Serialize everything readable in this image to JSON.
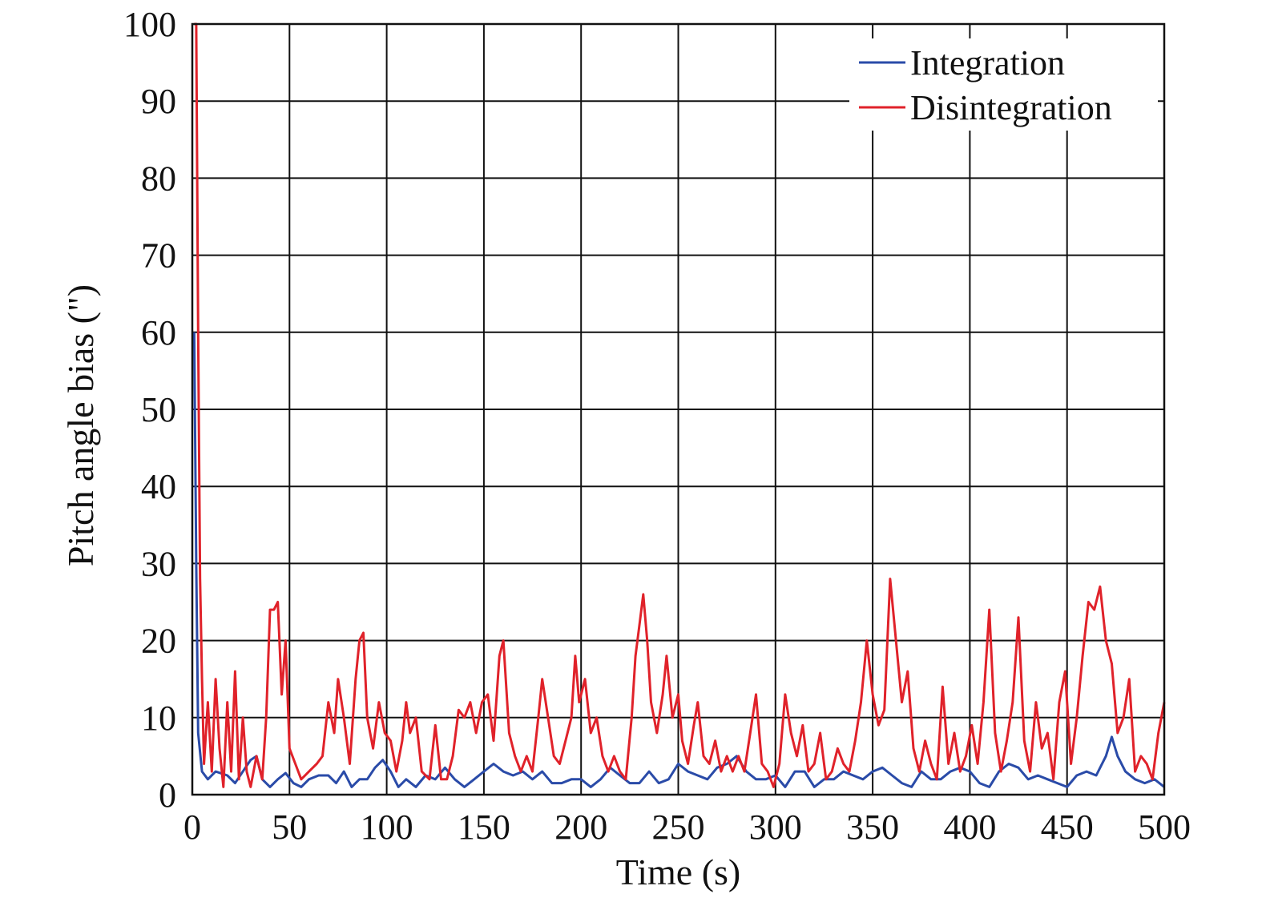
{
  "chart_data": {
    "type": "line",
    "xlabel": "Time (s)",
    "ylabel": "Pitch angle bias (\")",
    "xlim": [
      0,
      500
    ],
    "ylim": [
      0,
      100
    ],
    "xticks": [
      0,
      50,
      100,
      150,
      200,
      250,
      300,
      350,
      400,
      450,
      500
    ],
    "yticks": [
      0,
      10,
      20,
      30,
      40,
      50,
      60,
      70,
      80,
      90,
      100
    ],
    "grid": true,
    "legend": "top-right",
    "series": [
      {
        "name": "Integration",
        "color": "#2a4ba8",
        "points": [
          [
            1,
            60
          ],
          [
            2,
            30
          ],
          [
            3,
            8
          ],
          [
            5,
            3
          ],
          [
            8,
            2
          ],
          [
            12,
            3
          ],
          [
            18,
            2.5
          ],
          [
            22,
            1.5
          ],
          [
            26,
            3
          ],
          [
            30,
            4.5
          ],
          [
            33,
            5
          ],
          [
            36,
            2
          ],
          [
            40,
            1
          ],
          [
            44,
            2
          ],
          [
            48,
            2.8
          ],
          [
            52,
            1.5
          ],
          [
            56,
            1
          ],
          [
            60,
            2
          ],
          [
            65,
            2.5
          ],
          [
            70,
            2.5
          ],
          [
            74,
            1.5
          ],
          [
            78,
            3
          ],
          [
            82,
            1
          ],
          [
            86,
            2
          ],
          [
            90,
            2
          ],
          [
            94,
            3.5
          ],
          [
            98,
            4.5
          ],
          [
            102,
            3
          ],
          [
            106,
            1
          ],
          [
            110,
            2
          ],
          [
            115,
            1
          ],
          [
            120,
            2.5
          ],
          [
            125,
            2
          ],
          [
            130,
            3.5
          ],
          [
            135,
            2
          ],
          [
            140,
            1
          ],
          [
            145,
            2
          ],
          [
            150,
            3
          ],
          [
            155,
            4
          ],
          [
            160,
            3
          ],
          [
            165,
            2.5
          ],
          [
            170,
            3
          ],
          [
            175,
            2
          ],
          [
            180,
            3
          ],
          [
            185,
            1.5
          ],
          [
            190,
            1.5
          ],
          [
            195,
            2
          ],
          [
            200,
            2
          ],
          [
            205,
            1
          ],
          [
            210,
            2
          ],
          [
            215,
            3.5
          ],
          [
            220,
            2.5
          ],
          [
            225,
            1.5
          ],
          [
            230,
            1.5
          ],
          [
            235,
            3
          ],
          [
            240,
            1.5
          ],
          [
            245,
            2
          ],
          [
            250,
            4
          ],
          [
            255,
            3
          ],
          [
            260,
            2.5
          ],
          [
            265,
            2
          ],
          [
            270,
            3.5
          ],
          [
            275,
            4
          ],
          [
            280,
            5
          ],
          [
            285,
            3
          ],
          [
            290,
            2
          ],
          [
            295,
            2
          ],
          [
            300,
            2.5
          ],
          [
            305,
            1
          ],
          [
            310,
            3
          ],
          [
            315,
            3
          ],
          [
            320,
            1
          ],
          [
            325,
            2
          ],
          [
            330,
            2
          ],
          [
            335,
            3
          ],
          [
            340,
            2.5
          ],
          [
            345,
            2
          ],
          [
            350,
            3
          ],
          [
            355,
            3.5
          ],
          [
            360,
            2.5
          ],
          [
            365,
            1.5
          ],
          [
            370,
            1
          ],
          [
            375,
            3
          ],
          [
            380,
            2
          ],
          [
            385,
            2
          ],
          [
            390,
            3
          ],
          [
            395,
            3.5
          ],
          [
            400,
            3
          ],
          [
            405,
            1.5
          ],
          [
            410,
            1
          ],
          [
            415,
            3
          ],
          [
            420,
            4
          ],
          [
            425,
            3.5
          ],
          [
            430,
            2
          ],
          [
            435,
            2.5
          ],
          [
            440,
            2
          ],
          [
            445,
            1.5
          ],
          [
            450,
            1
          ],
          [
            455,
            2.5
          ],
          [
            460,
            3
          ],
          [
            465,
            2.5
          ],
          [
            470,
            5
          ],
          [
            473,
            7.5
          ],
          [
            476,
            5
          ],
          [
            480,
            3
          ],
          [
            485,
            2
          ],
          [
            490,
            1.5
          ],
          [
            495,
            2
          ],
          [
            500,
            1
          ]
        ]
      },
      {
        "name": "Disintegration",
        "color": "#e0222a",
        "points": [
          [
            1,
            100
          ],
          [
            2,
            100
          ],
          [
            3,
            60
          ],
          [
            4,
            28
          ],
          [
            5,
            15
          ],
          [
            6,
            4
          ],
          [
            8,
            12
          ],
          [
            10,
            3
          ],
          [
            12,
            15
          ],
          [
            14,
            6
          ],
          [
            16,
            1
          ],
          [
            18,
            12
          ],
          [
            20,
            3
          ],
          [
            22,
            16
          ],
          [
            24,
            2
          ],
          [
            26,
            10
          ],
          [
            28,
            3
          ],
          [
            30,
            1
          ],
          [
            33,
            5
          ],
          [
            36,
            2
          ],
          [
            38,
            10
          ],
          [
            40,
            24
          ],
          [
            42,
            24
          ],
          [
            44,
            25
          ],
          [
            46,
            13
          ],
          [
            48,
            20
          ],
          [
            50,
            6
          ],
          [
            53,
            4
          ],
          [
            56,
            2
          ],
          [
            60,
            3
          ],
          [
            64,
            4
          ],
          [
            67,
            5
          ],
          [
            70,
            12
          ],
          [
            73,
            8
          ],
          [
            75,
            15
          ],
          [
            78,
            10
          ],
          [
            81,
            4
          ],
          [
            84,
            15
          ],
          [
            86,
            20
          ],
          [
            88,
            21
          ],
          [
            90,
            10
          ],
          [
            93,
            6
          ],
          [
            96,
            12
          ],
          [
            99,
            8
          ],
          [
            102,
            7
          ],
          [
            105,
            3
          ],
          [
            108,
            7
          ],
          [
            110,
            12
          ],
          [
            112,
            8
          ],
          [
            115,
            10
          ],
          [
            118,
            3
          ],
          [
            122,
            2
          ],
          [
            125,
            9
          ],
          [
            128,
            2
          ],
          [
            131,
            2
          ],
          [
            134,
            5
          ],
          [
            137,
            11
          ],
          [
            140,
            10
          ],
          [
            143,
            12
          ],
          [
            146,
            8
          ],
          [
            149,
            12
          ],
          [
            152,
            13
          ],
          [
            155,
            7
          ],
          [
            158,
            18
          ],
          [
            160,
            20
          ],
          [
            163,
            8
          ],
          [
            166,
            5
          ],
          [
            169,
            3
          ],
          [
            172,
            5
          ],
          [
            175,
            3
          ],
          [
            178,
            10
          ],
          [
            180,
            15
          ],
          [
            183,
            10
          ],
          [
            186,
            5
          ],
          [
            189,
            4
          ],
          [
            192,
            7
          ],
          [
            195,
            10
          ],
          [
            197,
            18
          ],
          [
            199,
            12
          ],
          [
            202,
            15
          ],
          [
            205,
            8
          ],
          [
            208,
            10
          ],
          [
            211,
            5
          ],
          [
            214,
            3
          ],
          [
            217,
            5
          ],
          [
            220,
            3
          ],
          [
            223,
            2
          ],
          [
            226,
            10
          ],
          [
            228,
            18
          ],
          [
            230,
            22
          ],
          [
            232,
            26
          ],
          [
            234,
            20
          ],
          [
            236,
            12
          ],
          [
            239,
            8
          ],
          [
            242,
            13
          ],
          [
            244,
            18
          ],
          [
            247,
            10
          ],
          [
            250,
            13
          ],
          [
            252,
            7
          ],
          [
            255,
            4
          ],
          [
            258,
            9
          ],
          [
            260,
            12
          ],
          [
            263,
            5
          ],
          [
            266,
            4
          ],
          [
            269,
            7
          ],
          [
            272,
            3
          ],
          [
            275,
            5
          ],
          [
            278,
            3
          ],
          [
            281,
            5
          ],
          [
            284,
            3
          ],
          [
            287,
            8
          ],
          [
            290,
            13
          ],
          [
            293,
            4
          ],
          [
            296,
            3
          ],
          [
            299,
            1
          ],
          [
            302,
            4
          ],
          [
            305,
            13
          ],
          [
            308,
            8
          ],
          [
            311,
            5
          ],
          [
            314,
            9
          ],
          [
            317,
            3
          ],
          [
            320,
            4
          ],
          [
            323,
            8
          ],
          [
            326,
            2
          ],
          [
            329,
            3
          ],
          [
            332,
            6
          ],
          [
            335,
            4
          ],
          [
            338,
            3
          ],
          [
            341,
            7
          ],
          [
            344,
            12
          ],
          [
            347,
            20
          ],
          [
            350,
            13
          ],
          [
            353,
            9
          ],
          [
            356,
            11
          ],
          [
            359,
            28
          ],
          [
            362,
            20
          ],
          [
            365,
            12
          ],
          [
            368,
            16
          ],
          [
            371,
            6
          ],
          [
            374,
            3
          ],
          [
            377,
            7
          ],
          [
            380,
            4
          ],
          [
            383,
            2
          ],
          [
            386,
            14
          ],
          [
            389,
            4
          ],
          [
            392,
            8
          ],
          [
            395,
            3
          ],
          [
            398,
            5
          ],
          [
            401,
            9
          ],
          [
            404,
            4
          ],
          [
            407,
            12
          ],
          [
            410,
            24
          ],
          [
            413,
            8
          ],
          [
            416,
            3
          ],
          [
            419,
            7
          ],
          [
            422,
            12
          ],
          [
            425,
            23
          ],
          [
            428,
            7
          ],
          [
            431,
            3
          ],
          [
            434,
            12
          ],
          [
            437,
            6
          ],
          [
            440,
            8
          ],
          [
            443,
            2
          ],
          [
            446,
            12
          ],
          [
            449,
            16
          ],
          [
            452,
            4
          ],
          [
            455,
            10
          ],
          [
            458,
            18
          ],
          [
            461,
            25
          ],
          [
            464,
            24
          ],
          [
            467,
            27
          ],
          [
            470,
            20
          ],
          [
            473,
            17
          ],
          [
            476,
            8
          ],
          [
            479,
            10
          ],
          [
            482,
            15
          ],
          [
            485,
            3
          ],
          [
            488,
            5
          ],
          [
            491,
            4
          ],
          [
            494,
            2
          ],
          [
            497,
            8
          ],
          [
            500,
            12
          ]
        ]
      }
    ]
  }
}
